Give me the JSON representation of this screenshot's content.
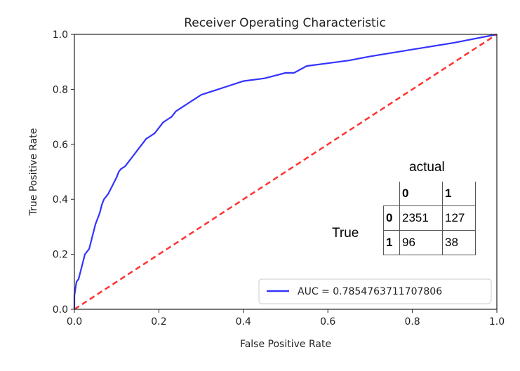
{
  "chart_data": {
    "type": "line",
    "title": "Receiver Operating Characteristic",
    "xlabel": "False Positive Rate",
    "ylabel": "True Positive Rate",
    "xlim": [
      0.0,
      1.0
    ],
    "ylim": [
      0.0,
      1.0
    ],
    "x_ticks": [
      "0.0",
      "0.2",
      "0.4",
      "0.6",
      "0.8",
      "1.0"
    ],
    "y_ticks": [
      "0.0",
      "0.2",
      "0.4",
      "0.6",
      "0.8",
      "1.0"
    ],
    "grid": false,
    "legend_position": "lower-right",
    "series": [
      {
        "name": "AUC = 0.7854763711707806",
        "color": "#3333ff",
        "style": "solid",
        "x": [
          0.0,
          0.0,
          0.005,
          0.01,
          0.015,
          0.02,
          0.025,
          0.03,
          0.035,
          0.04,
          0.05,
          0.055,
          0.06,
          0.065,
          0.07,
          0.075,
          0.08,
          0.09,
          0.1,
          0.105,
          0.11,
          0.12,
          0.13,
          0.14,
          0.15,
          0.16,
          0.17,
          0.18,
          0.19,
          0.2,
          0.21,
          0.22,
          0.23,
          0.24,
          0.25,
          0.26,
          0.27,
          0.28,
          0.29,
          0.3,
          0.32,
          0.34,
          0.36,
          0.38,
          0.4,
          0.45,
          0.5,
          0.52,
          0.55,
          0.6,
          0.65,
          0.7,
          0.8,
          0.9,
          1.0
        ],
        "y": [
          0.0,
          0.05,
          0.1,
          0.11,
          0.14,
          0.17,
          0.2,
          0.21,
          0.22,
          0.25,
          0.31,
          0.33,
          0.35,
          0.38,
          0.4,
          0.41,
          0.42,
          0.45,
          0.48,
          0.5,
          0.51,
          0.52,
          0.54,
          0.56,
          0.58,
          0.6,
          0.62,
          0.63,
          0.64,
          0.66,
          0.68,
          0.69,
          0.7,
          0.72,
          0.73,
          0.74,
          0.75,
          0.76,
          0.77,
          0.78,
          0.79,
          0.8,
          0.81,
          0.82,
          0.83,
          0.84,
          0.86,
          0.86,
          0.885,
          0.895,
          0.905,
          0.92,
          0.945,
          0.97,
          1.0
        ]
      },
      {
        "color": "#ff3333",
        "style": "dashed",
        "x": [
          0.0,
          1.0
        ],
        "y": [
          0.0,
          1.0
        ]
      }
    ]
  },
  "confusion_matrix": {
    "col_title": "actual",
    "row_title": "True",
    "col_headers": [
      "0",
      "1"
    ],
    "rows": [
      {
        "header": "0",
        "values": [
          "2351",
          "127"
        ]
      },
      {
        "header": "1",
        "values": [
          "96",
          "38"
        ]
      }
    ]
  }
}
